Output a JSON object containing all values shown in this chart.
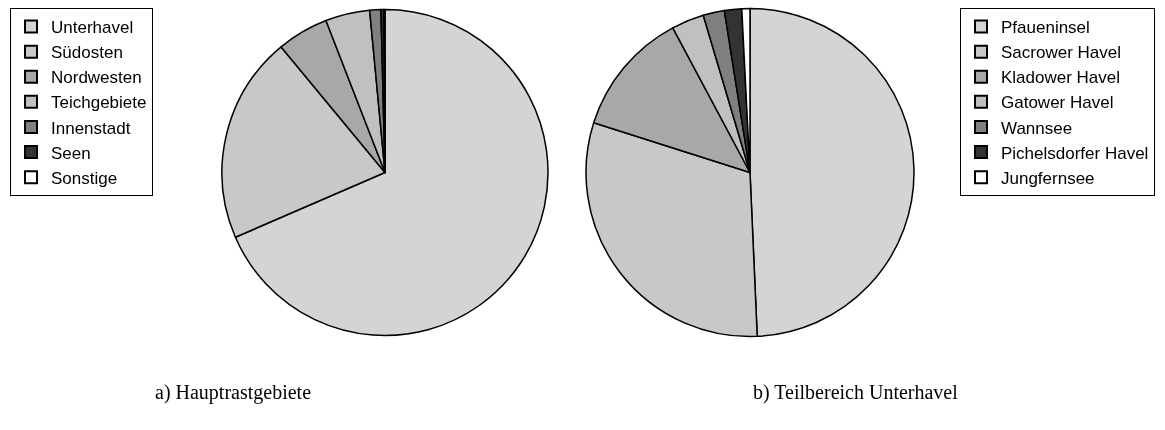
{
  "chart_data": [
    {
      "type": "pie",
      "title": "a) Hauptrastgebiete",
      "categories": [
        "Unterhavel",
        "Südosten",
        "Nordwesten",
        "Teichgebiete",
        "Innenstadt",
        "Seen",
        "Sonstige"
      ],
      "values": [
        68.5,
        20.5,
        5.1,
        4.4,
        1.1,
        0.3,
        0.1
      ],
      "colors": [
        "#d4d4d4",
        "#c8c8c8",
        "#a8a8a8",
        "#c0c0c0",
        "#808080",
        "#333333",
        "#ffffff"
      ],
      "legend": "left"
    },
    {
      "type": "pie",
      "title": "b) Teilbereich Unterhavel",
      "categories": [
        "Pfaueninsel",
        "Sacrower Havel",
        "Kladower Havel",
        "Gatower Havel",
        "Wannsee",
        "Pichelsdorfer Havel",
        "Jungfernsee"
      ],
      "values": [
        49.3,
        30.6,
        12.3,
        3.2,
        2.1,
        1.7,
        0.8
      ],
      "colors": [
        "#d4d4d4",
        "#c8c8c8",
        "#a8a8a8",
        "#c0c0c0",
        "#808080",
        "#333333",
        "#ffffff"
      ],
      "legend": "right"
    }
  ]
}
